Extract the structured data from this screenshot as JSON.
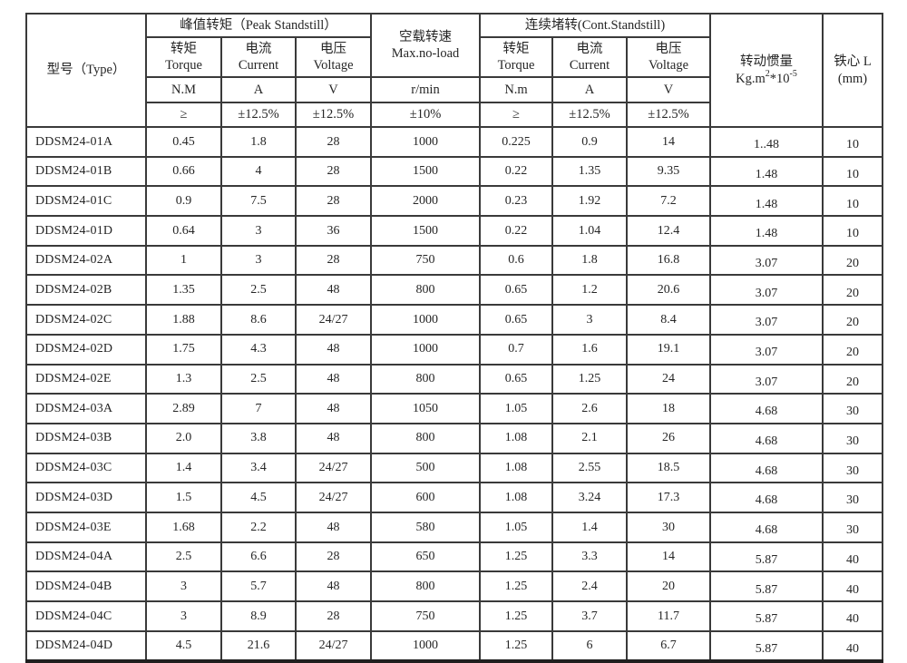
{
  "colors": {
    "background": "#ffffff",
    "text": "#262626",
    "grid_line": "#3a3a3a"
  },
  "table": {
    "header": {
      "type_label": "型号（Type）",
      "peak_group": "峰值转矩（Peak Standstill）",
      "noload_group": {
        "line1": "空载转速",
        "line2": "Max.no-load"
      },
      "cont_group": "连续堵转(Cont.Standstill)",
      "inertia": {
        "line1": "转动惯量",
        "unit_base1": "Kg.m",
        "unit_sup1": "2",
        "unit_base2": "*10",
        "unit_sup2": "-5"
      },
      "core": {
        "line1": "铁心 L",
        "line2": "(mm)"
      },
      "names": {
        "peak_torque_cn": "转矩",
        "peak_torque_en": "Torque",
        "peak_current_cn": "电流",
        "peak_current_en": "Current",
        "peak_voltage_cn": "电压",
        "peak_voltage_en": "Voltage",
        "cont_torque_cn": "转矩",
        "cont_torque_en": "Torque",
        "cont_current_cn": "电流",
        "cont_current_en": "Current",
        "cont_voltage_cn": "电压",
        "cont_voltage_en": "Voltage"
      },
      "units": {
        "peak_torque": "N.M",
        "peak_current": "A",
        "peak_voltage": "V",
        "noload": "r/min",
        "cont_torque": "N.m",
        "cont_current": "A",
        "cont_voltage": "V"
      },
      "tolerances": {
        "peak_torque": "≥",
        "peak_current": "±12.5%",
        "peak_voltage": "±12.5%",
        "noload": "±10%",
        "cont_torque": "≥",
        "cont_current": "±12.5%",
        "cont_voltage": "±12.5%"
      }
    },
    "rows": [
      [
        "DDSM24-01A",
        "0.45",
        "1.8",
        "28",
        "1000",
        "0.225",
        "0.9",
        "14",
        "1..48",
        "10"
      ],
      [
        "DDSM24-01B",
        "0.66",
        "4",
        "28",
        "1500",
        "0.22",
        "1.35",
        "9.35",
        "1.48",
        "10"
      ],
      [
        "DDSM24-01C",
        "0.9",
        "7.5",
        "28",
        "2000",
        "0.23",
        "1.92",
        "7.2",
        "1.48",
        "10"
      ],
      [
        "DDSM24-01D",
        "0.64",
        "3",
        "36",
        "1500",
        "0.22",
        "1.04",
        "12.4",
        "1.48",
        "10"
      ],
      [
        "DDSM24-02A",
        "1",
        "3",
        "28",
        "750",
        "0.6",
        "1.8",
        "16.8",
        "3.07",
        "20"
      ],
      [
        "DDSM24-02B",
        "1.35",
        "2.5",
        "48",
        "800",
        "0.65",
        "1.2",
        "20.6",
        "3.07",
        "20"
      ],
      [
        "DDSM24-02C",
        "1.88",
        "8.6",
        "24/27",
        "1000",
        "0.65",
        "3",
        "8.4",
        "3.07",
        "20"
      ],
      [
        "DDSM24-02D",
        "1.75",
        "4.3",
        "48",
        "1000",
        "0.7",
        "1.6",
        "19.1",
        "3.07",
        "20"
      ],
      [
        "DDSM24-02E",
        "1.3",
        "2.5",
        "48",
        "800",
        "0.65",
        "1.25",
        "24",
        "3.07",
        "20"
      ],
      [
        "DDSM24-03A",
        "2.89",
        "7",
        "48",
        "1050",
        "1.05",
        "2.6",
        "18",
        "4.68",
        "30"
      ],
      [
        "DDSM24-03B",
        "2.0",
        "3.8",
        "48",
        "800",
        "1.08",
        "2.1",
        "26",
        "4.68",
        "30"
      ],
      [
        "DDSM24-03C",
        "1.4",
        "3.4",
        "24/27",
        "500",
        "1.08",
        "2.55",
        "18.5",
        "4.68",
        "30"
      ],
      [
        "DDSM24-03D",
        "1.5",
        "4.5",
        "24/27",
        "600",
        "1.08",
        "3.24",
        "17.3",
        "4.68",
        "30"
      ],
      [
        "DDSM24-03E",
        "1.68",
        "2.2",
        "48",
        "580",
        "1.05",
        "1.4",
        "30",
        "4.68",
        "30"
      ],
      [
        "DDSM24-04A",
        "2.5",
        "6.6",
        "28",
        "650",
        "1.25",
        "3.3",
        "14",
        "5.87",
        "40"
      ],
      [
        "DDSM24-04B",
        "3",
        "5.7",
        "48",
        "800",
        "1.25",
        "2.4",
        "20",
        "5.87",
        "40"
      ],
      [
        "DDSM24-04C",
        "3",
        "8.9",
        "28",
        "750",
        "1.25",
        "3.7",
        "11.7",
        "5.87",
        "40"
      ],
      [
        "DDSM24-04D",
        "4.5",
        "21.6",
        "24/27",
        "1000",
        "1.25",
        "6",
        "6.7",
        "5.87",
        "40"
      ]
    ]
  }
}
